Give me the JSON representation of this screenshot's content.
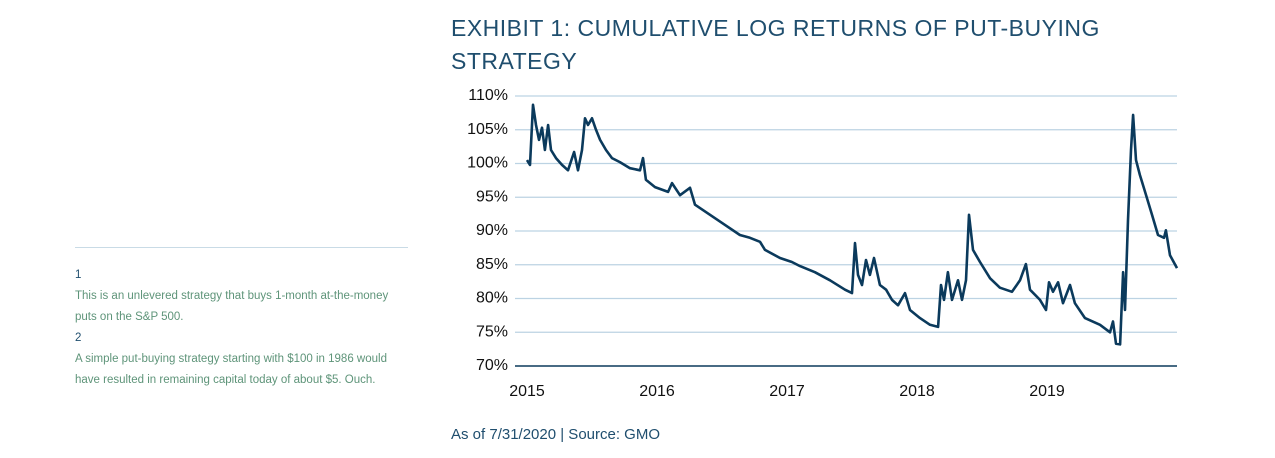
{
  "chart_data": {
    "type": "line",
    "title": "EXHIBIT 1: CUMULATIVE LOG RETURNS OF PUT-BUYING STRATEGY",
    "note": "As of 7/31/2020 | Source: GMO",
    "x": [
      2015.0,
      2015.023,
      2015.046,
      2015.069,
      2015.092,
      2015.115,
      2015.138,
      2015.162,
      2015.185,
      2015.223,
      2015.269,
      2015.315,
      2015.362,
      2015.392,
      2015.423,
      2015.446,
      2015.469,
      2015.5,
      2015.531,
      2015.562,
      2015.608,
      2015.654,
      2015.715,
      2015.792,
      2015.869,
      2015.892,
      2015.915,
      2015.985,
      2016.085,
      2016.115,
      2016.177,
      2016.254,
      2016.292,
      2016.408,
      2016.523,
      2016.638,
      2016.715,
      2016.792,
      2016.831,
      2016.946,
      2017.038,
      2017.1,
      2017.215,
      2017.331,
      2017.446,
      2017.5,
      2017.523,
      2017.546,
      2017.577,
      2017.608,
      2017.638,
      2017.669,
      2017.715,
      2017.762,
      2017.808,
      2017.854,
      2017.908,
      2017.946,
      2018.023,
      2018.1,
      2018.162,
      2018.185,
      2018.208,
      2018.238,
      2018.269,
      2018.315,
      2018.346,
      2018.377,
      2018.4,
      2018.431,
      2018.485,
      2018.562,
      2018.638,
      2018.731,
      2018.792,
      2018.838,
      2018.869,
      2018.946,
      2018.992,
      2019.015,
      2019.046,
      2019.085,
      2019.123,
      2019.177,
      2019.215,
      2019.292,
      2019.408,
      2019.485,
      2019.508,
      2019.531,
      2019.562,
      2019.585,
      2019.6,
      2019.623,
      2019.646,
      2019.662,
      2019.685,
      2019.715,
      2019.762,
      2019.808,
      2019.854,
      2019.9,
      2019.915,
      2019.946,
      2020.0
    ],
    "values": [
      100.5,
      99.8,
      108.7,
      105.7,
      103.5,
      105.3,
      102,
      105.7,
      102,
      100.8,
      99.8,
      99,
      101.7,
      99,
      102,
      106.7,
      105.7,
      106.7,
      105,
      103.5,
      102,
      100.8,
      100.2,
      99.3,
      99,
      100.8,
      97.6,
      96.5,
      95.8,
      97.1,
      95.3,
      96.4,
      93.9,
      92.4,
      90.9,
      89.4,
      89,
      88.4,
      87.2,
      86,
      85.4,
      84.8,
      83.9,
      82.7,
      81.3,
      80.8,
      88.2,
      83.5,
      82,
      85.7,
      83.5,
      86,
      82,
      81.3,
      79.8,
      79,
      80.8,
      78.3,
      77.1,
      76.1,
      75.8,
      82,
      79.8,
      83.9,
      79.8,
      82.7,
      79.8,
      82.7,
      92.4,
      87.2,
      85.4,
      83,
      81.6,
      81,
      82.7,
      85.1,
      81.3,
      79.8,
      78.3,
      82.4,
      81,
      82.4,
      79.3,
      82,
      79.3,
      77.1,
      76.1,
      75,
      76.6,
      73.3,
      73.2,
      83.9,
      78.3,
      91.6,
      102,
      107.2,
      100.5,
      98.3,
      95.3,
      92.4,
      89.4,
      89,
      90.1,
      86.4,
      84.5
    ],
    "color": "#0b3a5c",
    "xlim": [
      2015,
      2020
    ],
    "xticks": [
      2015,
      2016,
      2017,
      2018,
      2019
    ],
    "ylim": [
      70,
      110
    ],
    "yticks": [
      {
        "value": 70,
        "label": "70%"
      },
      {
        "value": 75,
        "label": "75%"
      },
      {
        "value": 80,
        "label": "80%"
      },
      {
        "value": 85,
        "label": "85%"
      },
      {
        "value": 90,
        "label": "90%"
      },
      {
        "value": 95,
        "label": "95%"
      },
      {
        "value": 100,
        "label": "100%"
      },
      {
        "value": 105,
        "label": "105%"
      },
      {
        "value": 110,
        "label": "110%"
      }
    ],
    "grid": true
  },
  "footnotes": [
    {
      "number": "1",
      "text": "This is an unlevered strategy that buys 1-month at-the-money puts on the S&P 500."
    },
    {
      "number": "2",
      "text": "A simple put-buying strategy starting with $100 in 1986 would have resulted in remaining capital today of about $5. Ouch."
    }
  ]
}
